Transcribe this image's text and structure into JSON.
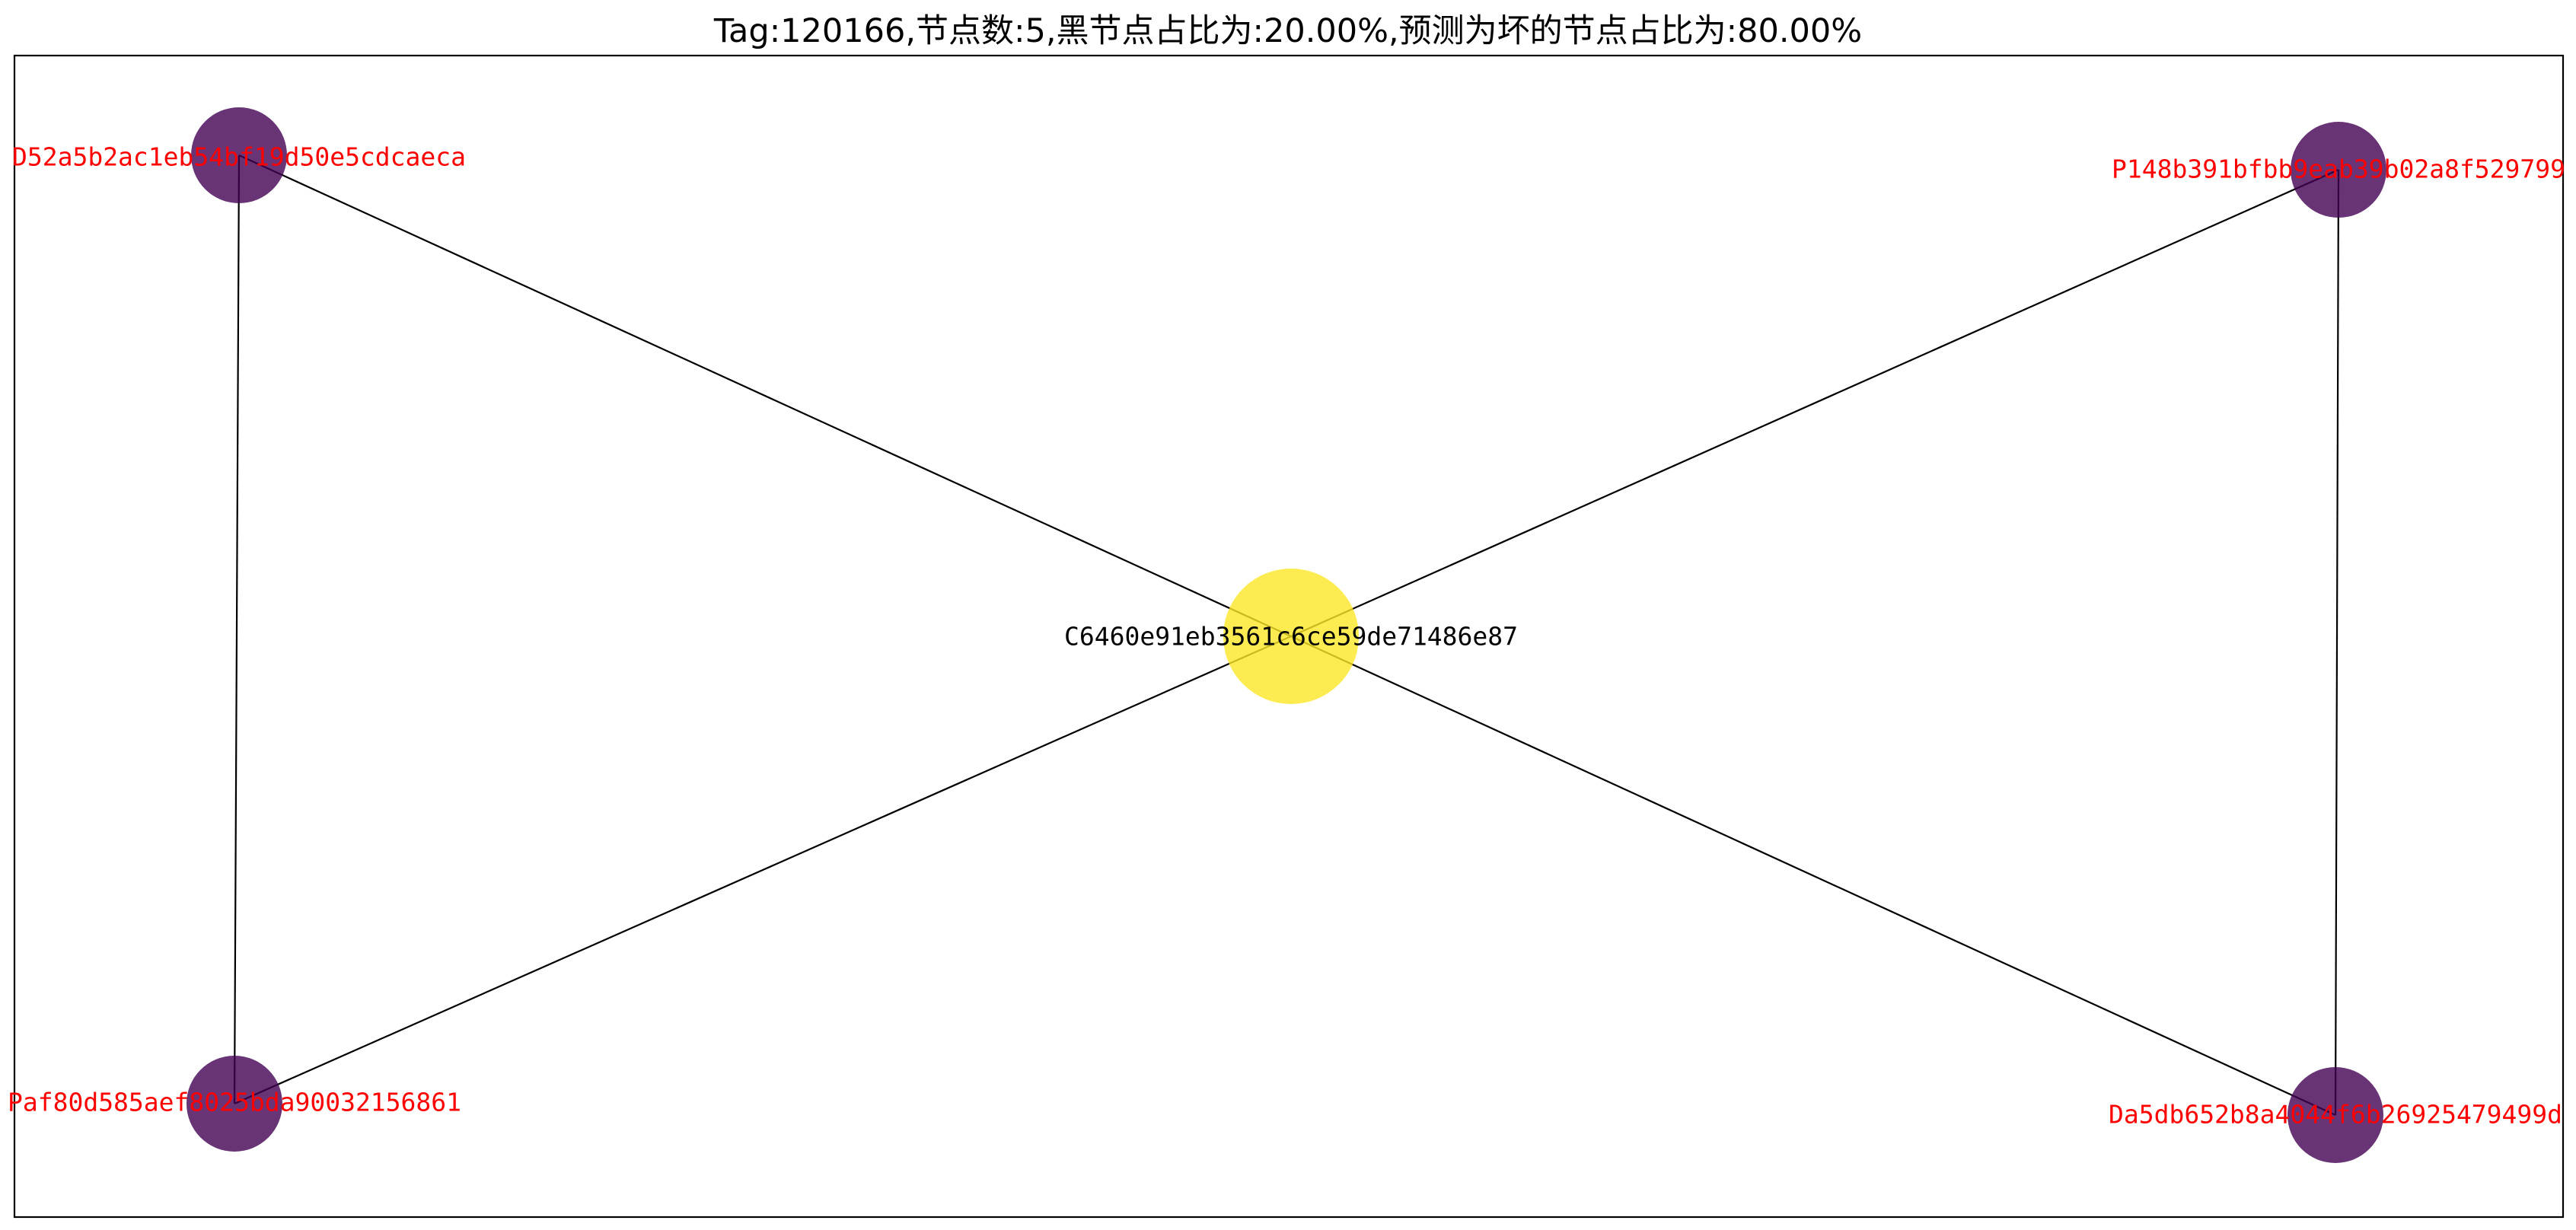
{
  "title": "Tag:120166,节点数:5,黑节点占比为:20.00%,预测为坏的节点占比为:80.00%",
  "colors": {
    "bad_node_fill": "#440154",
    "center_node_fill": "#fde725",
    "bad_label": "#ff0000",
    "center_label": "#000000",
    "edge": "#000000"
  },
  "nodes": [
    {
      "id": "D52a5b2ac1eb54bf19d50e5cdcaeca",
      "label": "D52a5b2ac1eb54bf19d50e5cdcaeca",
      "kind": "predicted-bad"
    },
    {
      "id": "P148b391bfbb9eab39b02a8f529799",
      "label": "P148b391bfbb9eab39b02a8f529799",
      "kind": "predicted-bad"
    },
    {
      "id": "C6460e91eb3561c6ce59de71486e87",
      "label": "C6460e91eb3561c6ce59de71486e87",
      "kind": "center"
    },
    {
      "id": "Paf80d585aef8025bda90032156861",
      "label": "Paf80d585aef8025bda90032156861",
      "kind": "predicted-bad"
    },
    {
      "id": "Da5db652b8a4044f6b26925479499d",
      "label": "Da5db652b8a4044f6b26925479499d",
      "kind": "predicted-bad"
    }
  ],
  "edges": [
    {
      "source": "D52a5b2ac1eb54bf19d50e5cdcaeca",
      "target": "C6460e91eb3561c6ce59de71486e87"
    },
    {
      "source": "D52a5b2ac1eb54bf19d50e5cdcaeca",
      "target": "Paf80d585aef8025bda90032156861"
    },
    {
      "source": "P148b391bfbb9eab39b02a8f529799",
      "target": "C6460e91eb3561c6ce59de71486e87"
    },
    {
      "source": "P148b391bfbb9eab39b02a8f529799",
      "target": "Da5db652b8a4044f6b26925479499d"
    },
    {
      "source": "Paf80d585aef8025bda90032156861",
      "target": "C6460e91eb3561c6ce59de71486e87"
    },
    {
      "source": "Da5db652b8a4044f6b26925479499d",
      "target": "C6460e91eb3561c6ce59de71486e87"
    }
  ]
}
